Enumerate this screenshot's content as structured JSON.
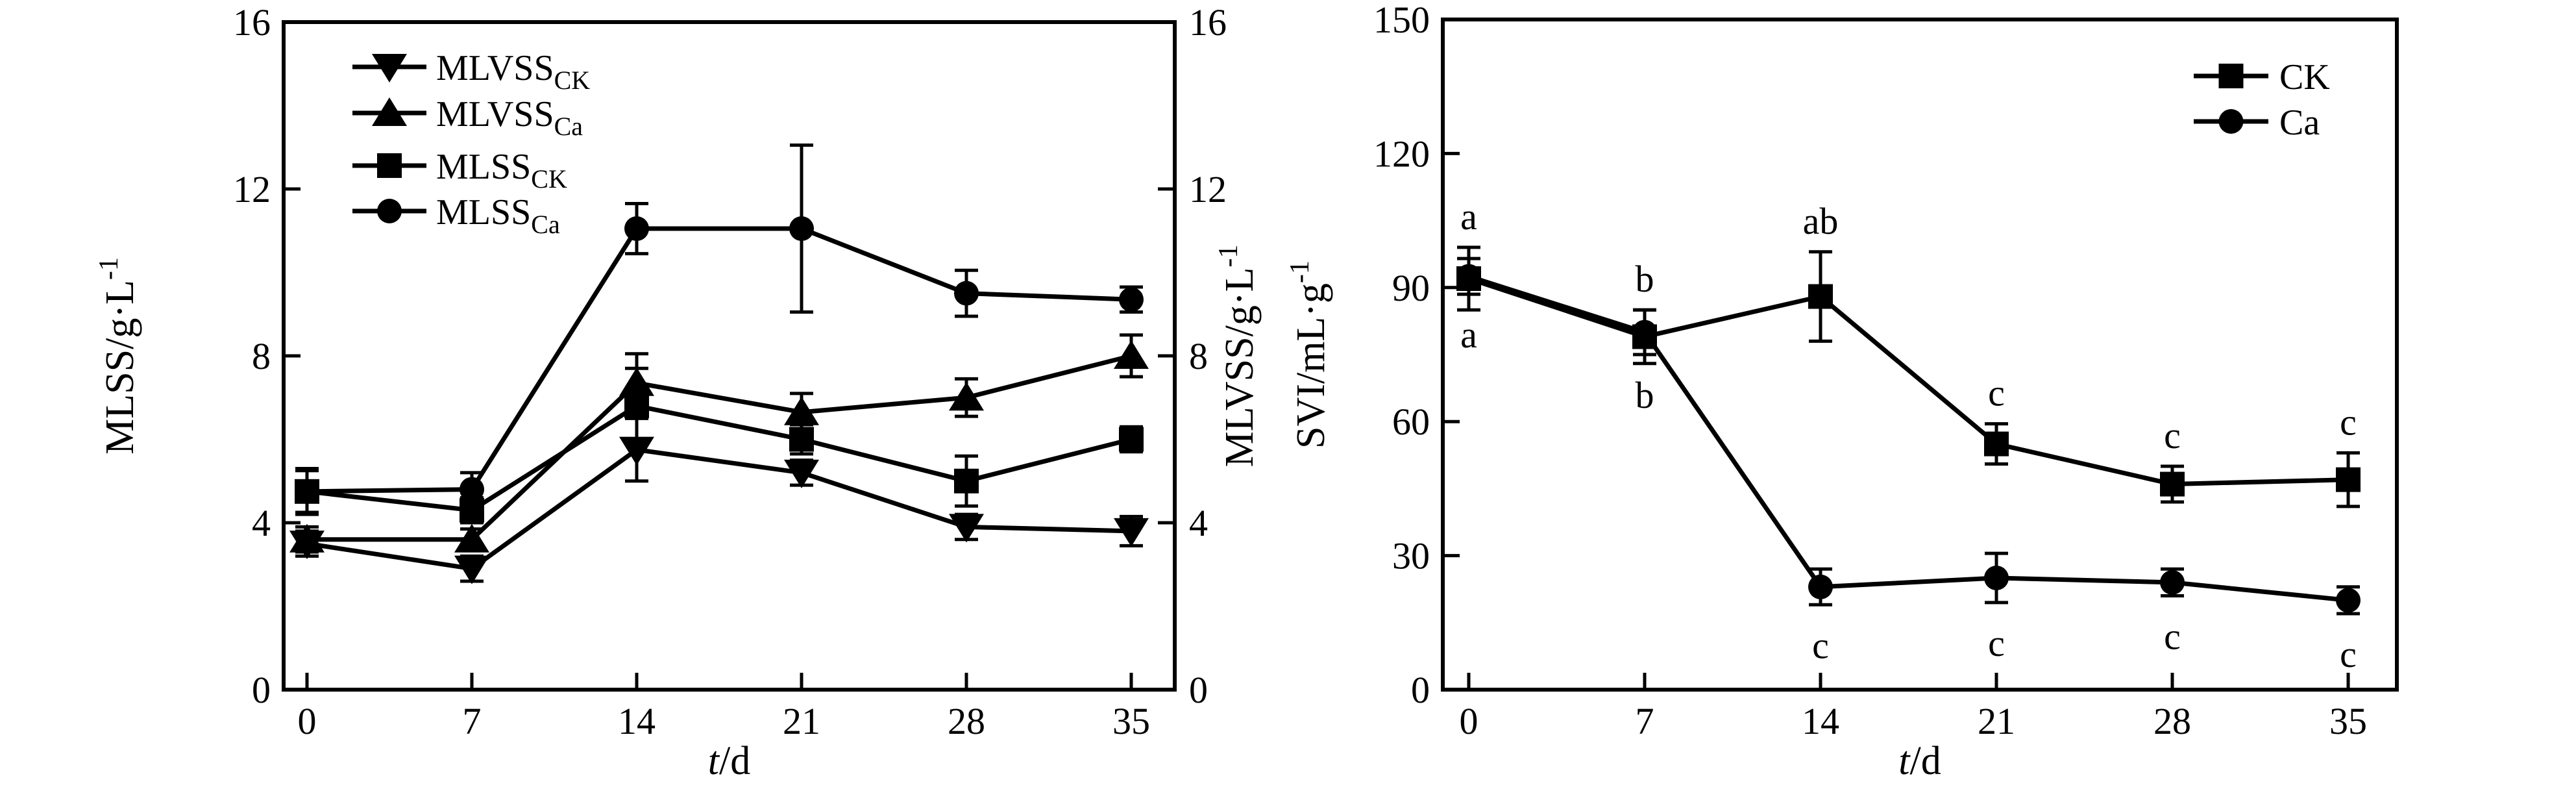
{
  "colors": {
    "foreground": "#000000",
    "background": "#ffffff"
  },
  "chart_data": [
    {
      "type": "line",
      "panel": "left",
      "title": "",
      "xlabel": "t/d",
      "xlabel_italic": "t",
      "xlabel_rest": "/d",
      "ylabel": {
        "main": "MLSS/g·L",
        "sup": "-1"
      },
      "ylabel_right": {
        "main": "MLVSS/g·L",
        "sup": "-1"
      },
      "x": [
        0,
        7,
        14,
        21,
        28,
        35
      ],
      "xtick_labels": [
        "0",
        "7",
        "14",
        "21",
        "28",
        "35"
      ],
      "ylim": [
        0,
        16
      ],
      "yticks": [
        0,
        4,
        8,
        12,
        16
      ],
      "grid": false,
      "legend_position": "top-left",
      "series": [
        {
          "label_main": "MLVSS",
          "label_sub": "CK",
          "marker": "triangle-down",
          "values": [
            3.5,
            2.9,
            5.75,
            5.2,
            3.9,
            3.8
          ],
          "errors": [
            0.3,
            0.3,
            0.75,
            0.3,
            0.3,
            0.35
          ]
        },
        {
          "label_main": "MLVSS",
          "label_sub": "Ca",
          "marker": "triangle-up",
          "values": [
            3.6,
            3.6,
            7.35,
            6.65,
            7.0,
            8.0
          ],
          "errors": [
            0.3,
            0.25,
            0.7,
            0.45,
            0.45,
            0.5
          ]
        },
        {
          "label_main": "MLSS",
          "label_sub": "CK",
          "marker": "square",
          "values": [
            4.75,
            4.3,
            6.8,
            6.0,
            5.0,
            6.0
          ],
          "errors": [
            0.55,
            0.3,
            0.9,
            0.35,
            0.6,
            0.3
          ]
        },
        {
          "label_main": "MLSS",
          "label_sub": "Ca",
          "marker": "circle",
          "values": [
            4.75,
            4.8,
            11.05,
            11.05,
            9.5,
            9.35
          ],
          "errors": [
            0.5,
            0.4,
            0.6,
            2.0,
            0.55,
            0.3
          ]
        }
      ]
    },
    {
      "type": "line",
      "panel": "right",
      "title": "",
      "xlabel": "t/d",
      "xlabel_italic": "t",
      "xlabel_rest": "/d",
      "ylabel": {
        "main": "SVI/mL·g",
        "sup": "-1"
      },
      "x": [
        0,
        7,
        14,
        21,
        28,
        35
      ],
      "xtick_labels": [
        "0",
        "7",
        "14",
        "21",
        "28",
        "35"
      ],
      "ylim": [
        0,
        150
      ],
      "yticks": [
        0,
        30,
        60,
        90,
        120,
        150
      ],
      "grid": false,
      "legend_position": "top-right",
      "series": [
        {
          "label_main": "CK",
          "label_sub": "",
          "marker": "square",
          "values": [
            92,
            79,
            88,
            55,
            46,
            47
          ],
          "errors": [
            7,
            6,
            10,
            4.5,
            4,
            6
          ],
          "letters": [
            "a",
            "b",
            "ab",
            "c",
            "c",
            "c"
          ],
          "letters_position": "above"
        },
        {
          "label_main": "Ca",
          "label_sub": "",
          "marker": "circle",
          "values": [
            92.5,
            80,
            23,
            25,
            24,
            20
          ],
          "errors": [
            4,
            5,
            4,
            5.5,
            3,
            3
          ],
          "letters": [
            "a",
            "b",
            "c",
            "c",
            "c",
            "c"
          ],
          "letters_position": "below"
        }
      ]
    }
  ]
}
